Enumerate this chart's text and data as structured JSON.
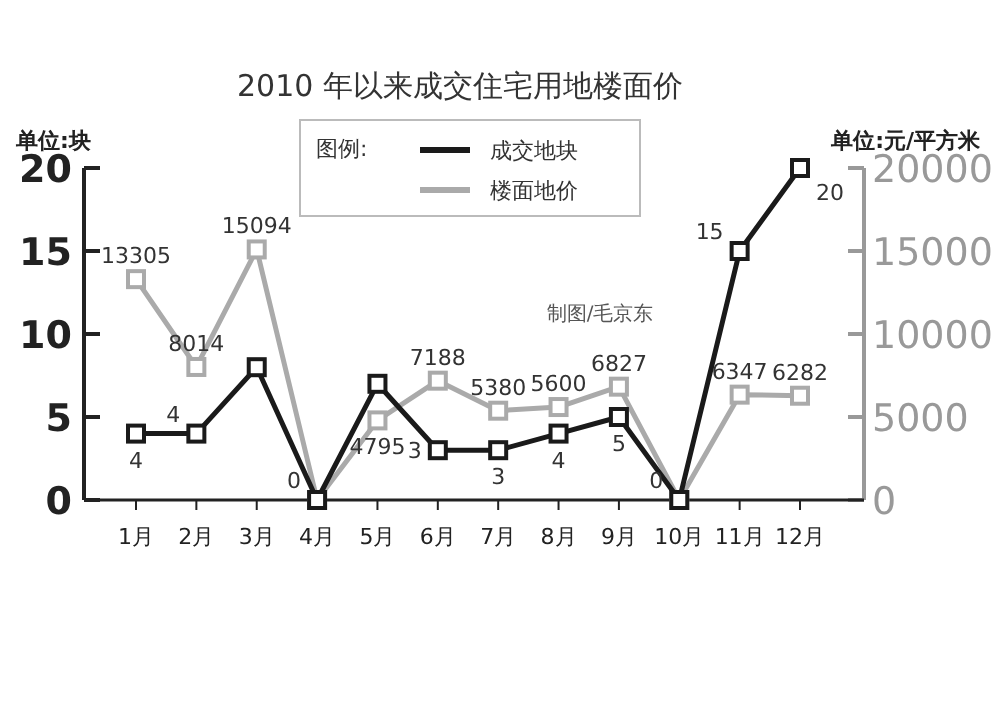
{
  "chart_data": {
    "type": "line",
    "title": "2010 年以来成交住宅用地楼面价",
    "ylabel": "单位:块",
    "y2label": "单位:元/平方米",
    "legend_title": "图例:",
    "categories": [
      "1月",
      "2月",
      "3月",
      "4月",
      "5月",
      "6月",
      "7月",
      "8月",
      "9月",
      "10月",
      "11月",
      "12月"
    ],
    "series": [
      {
        "name": "成交地块",
        "color": "#1a1a1a",
        "values": [
          4,
          4,
          8,
          0,
          7,
          3,
          3,
          4,
          5,
          0,
          15,
          20
        ],
        "value_labels": [
          "4",
          "4",
          null,
          "0",
          null,
          "3",
          "3",
          "4",
          "5",
          "0",
          "15",
          "20"
        ]
      },
      {
        "name": "楼面地价",
        "color": "#aaaaaa",
        "axis": "y2",
        "values": [
          13305,
          8014,
          15094,
          0,
          4795,
          7188,
          5380,
          5600,
          6827,
          0,
          6347,
          6282
        ],
        "value_labels": [
          "13305",
          "8014",
          "15094",
          null,
          "4795",
          "7188",
          "5380",
          "5600",
          "6827",
          null,
          "6347",
          "6282"
        ]
      }
    ],
    "ylim": [
      0,
      20
    ],
    "yticks": [
      0,
      5,
      10,
      15,
      20
    ],
    "y2lim": [
      0,
      20000
    ],
    "y2ticks": [
      0,
      5000,
      10000,
      15000,
      20000
    ],
    "marker": "square",
    "legend": "top right",
    "grid": false,
    "annotations": [
      "制图/毛京东"
    ]
  }
}
